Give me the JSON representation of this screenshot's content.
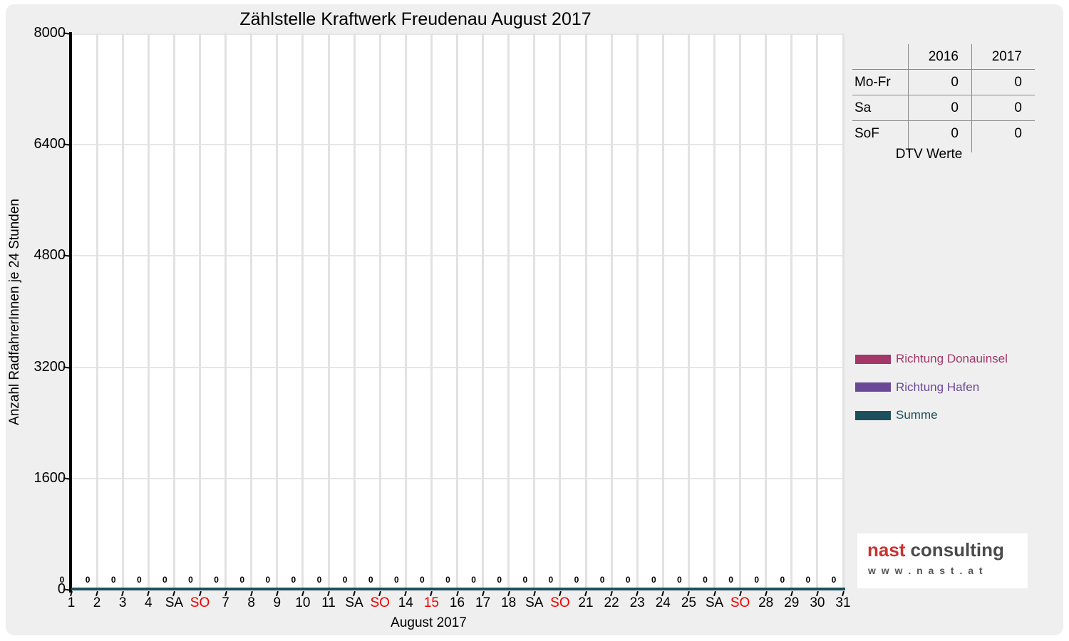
{
  "title": "Zählstelle Kraftwerk Freudenau August 2017",
  "axes": {
    "ylabel": "Anzahl RadfahrerInnen je 24 Stunden",
    "xlabel": "August 2017"
  },
  "chart_data": {
    "type": "line",
    "title": "Zählstelle Kraftwerk Freudenau August 2017",
    "xlabel": "August 2017",
    "ylabel": "Anzahl RadfahrerInnen je 24 Stunden",
    "ylim": [
      0,
      8000
    ],
    "yticks": [
      0,
      1600,
      3200,
      4800,
      6400,
      8000
    ],
    "grid": true,
    "legend_position": "right",
    "x_labels": [
      "1",
      "2",
      "3",
      "4",
      "SA",
      "SO",
      "7",
      "8",
      "9",
      "10",
      "11",
      "SA",
      "SO",
      "14",
      "15",
      "16",
      "17",
      "18",
      "SA",
      "SO",
      "21",
      "22",
      "23",
      "24",
      "25",
      "SA",
      "SO",
      "28",
      "29",
      "30",
      "31"
    ],
    "holiday_indices": [
      5,
      12,
      14,
      19,
      26
    ],
    "series": [
      {
        "name": "Richtung Donauinsel",
        "color": "#a23768",
        "values": [
          0,
          0,
          0,
          0,
          0,
          0,
          0,
          0,
          0,
          0,
          0,
          0,
          0,
          0,
          0,
          0,
          0,
          0,
          0,
          0,
          0,
          0,
          0,
          0,
          0,
          0,
          0,
          0,
          0,
          0,
          0
        ]
      },
      {
        "name": "Richtung Hafen",
        "color": "#6b4897",
        "values": [
          0,
          0,
          0,
          0,
          0,
          0,
          0,
          0,
          0,
          0,
          0,
          0,
          0,
          0,
          0,
          0,
          0,
          0,
          0,
          0,
          0,
          0,
          0,
          0,
          0,
          0,
          0,
          0,
          0,
          0,
          0
        ]
      },
      {
        "name": "Summe",
        "color": "#1c505c",
        "values": [
          0,
          0,
          0,
          0,
          0,
          0,
          0,
          0,
          0,
          0,
          0,
          0,
          0,
          0,
          0,
          0,
          0,
          0,
          0,
          0,
          0,
          0,
          0,
          0,
          0,
          0,
          0,
          0,
          0,
          0,
          0
        ]
      }
    ],
    "point_labels_visible": true
  },
  "table": {
    "col_headers": [
      "2016",
      "2017"
    ],
    "rows": [
      {
        "label": "Mo-Fr",
        "values": [
          "0",
          "0"
        ]
      },
      {
        "label": "Sa",
        "values": [
          "0",
          "0"
        ]
      },
      {
        "label": "SoF",
        "values": [
          "0",
          "0"
        ]
      }
    ],
    "caption": "DTV Werte"
  },
  "logo": {
    "brand_red": "nast",
    "brand_gray": "consulting",
    "url": "w w w . n a s t . a t"
  },
  "colors": {
    "panel_bg": "#efefef",
    "plot_bg": "#ffffff",
    "grid": "#e2e2e2",
    "axis": "#000000",
    "holiday_red": "#ee0000",
    "weekday_black": "#000000",
    "table_line": "#888888",
    "logo_red": "#c73331",
    "logo_gray": "#4a4a4a"
  }
}
